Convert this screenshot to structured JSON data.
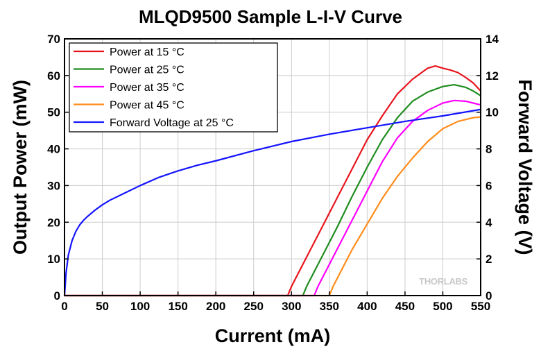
{
  "chart_data": {
    "type": "line",
    "title": "MLQD9500 Sample L-I-V Curve",
    "xlabel": "Current (mA)",
    "ylabel": "Output Power (mW)",
    "y2label": "Forward Voltage (V)",
    "xlim": [
      0,
      550
    ],
    "ylim": [
      0,
      70
    ],
    "y2lim": [
      0,
      14
    ],
    "x_ticks": [
      0,
      50,
      100,
      150,
      200,
      250,
      300,
      350,
      400,
      450,
      500,
      550
    ],
    "y_ticks": [
      0,
      10,
      20,
      30,
      40,
      50,
      60,
      70
    ],
    "y2_ticks": [
      0,
      2,
      4,
      6,
      8,
      10,
      12,
      14
    ],
    "grid": true,
    "legend_position": "top-left",
    "watermark": "THORLABS",
    "series": [
      {
        "name": "Power at 15 °C",
        "color": "#e8141c",
        "axis": "left",
        "x": [
          0,
          295,
          300,
          320,
          340,
          360,
          380,
          400,
          420,
          440,
          460,
          480,
          490,
          500,
          510,
          520,
          530,
          540,
          550
        ],
        "y": [
          0,
          0,
          2.5,
          10.5,
          18.5,
          26.5,
          34.5,
          42.5,
          49.0,
          55.0,
          59.0,
          62.0,
          62.6,
          62.0,
          61.5,
          60.8,
          59.5,
          58.0,
          55.8
        ]
      },
      {
        "name": "Power at 25 °C",
        "color": "#1e8c1e",
        "axis": "left",
        "x": [
          0,
          315,
          320,
          340,
          360,
          380,
          400,
          420,
          440,
          460,
          480,
          500,
          515,
          530,
          540,
          550
        ],
        "y": [
          0,
          0,
          2.5,
          10.5,
          18.5,
          27.0,
          35.0,
          42.5,
          48.5,
          53.0,
          55.5,
          57.0,
          57.5,
          56.8,
          55.8,
          54.5
        ]
      },
      {
        "name": "Power at 35 °C",
        "color": "#ff00ff",
        "axis": "left",
        "x": [
          0,
          330,
          335,
          360,
          380,
          400,
          420,
          440,
          460,
          480,
          500,
          515,
          530,
          540,
          550
        ],
        "y": [
          0,
          0,
          2.5,
          12.5,
          20.5,
          28.5,
          36.5,
          43.0,
          47.5,
          50.5,
          52.5,
          53.2,
          53.0,
          52.5,
          52.0
        ]
      },
      {
        "name": "Power at 45 °C",
        "color": "#ff8c1a",
        "axis": "left",
        "x": [
          0,
          350,
          355,
          380,
          400,
          420,
          440,
          460,
          480,
          500,
          520,
          540,
          550
        ],
        "y": [
          0,
          0,
          2.5,
          12.5,
          19.5,
          26.5,
          32.5,
          37.5,
          42.0,
          45.5,
          47.5,
          48.5,
          48.7
        ]
      },
      {
        "name": "Forward Voltage at 25 °C",
        "color": "#1414ff",
        "axis": "right",
        "x": [
          0,
          2,
          5,
          10,
          15,
          20,
          25,
          30,
          40,
          50,
          60,
          80,
          100,
          125,
          150,
          175,
          200,
          250,
          300,
          350,
          400,
          450,
          500,
          550
        ],
        "y": [
          0,
          1.2,
          2.2,
          3.0,
          3.5,
          3.85,
          4.1,
          4.3,
          4.65,
          4.95,
          5.2,
          5.6,
          6.0,
          6.45,
          6.8,
          7.1,
          7.35,
          7.9,
          8.4,
          8.8,
          9.15,
          9.5,
          9.8,
          10.15
        ]
      }
    ]
  }
}
